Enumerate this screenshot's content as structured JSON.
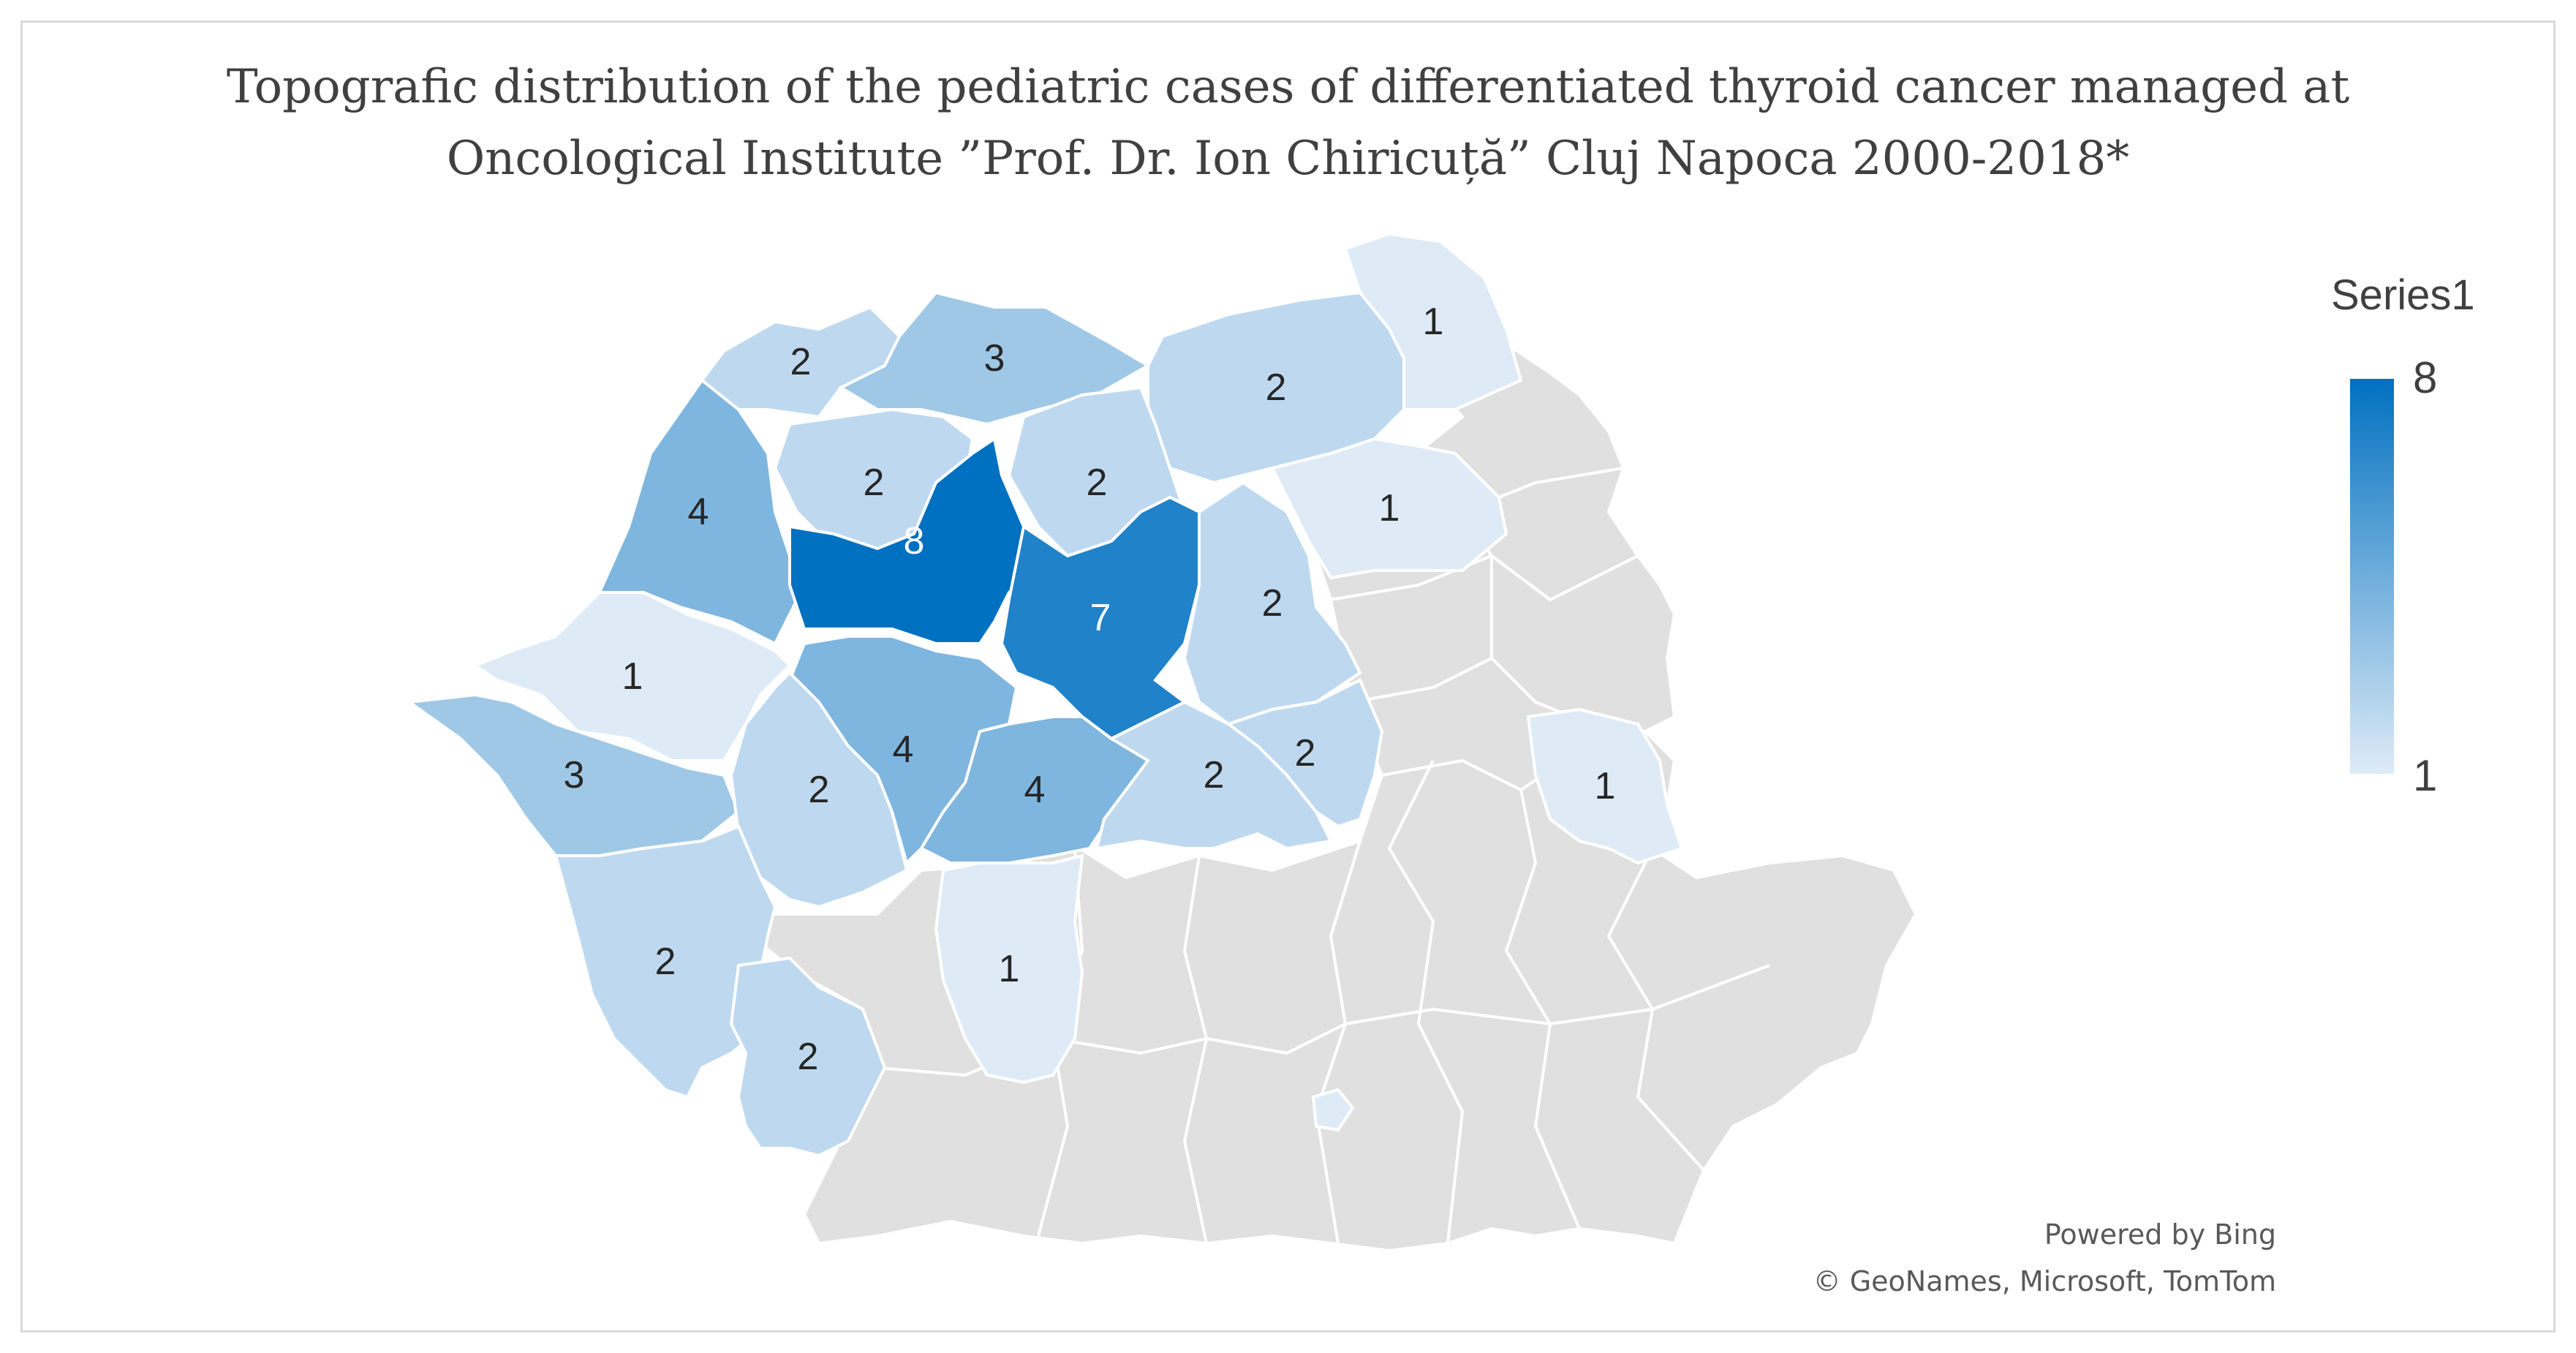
{
  "title": {
    "line1": "Topografic distribution of the pediatric cases of differentiated thyroid cancer managed at",
    "line2": "Oncological Institute ”Prof. Dr. Ion Chiricuță” Cluj Napoca 2000-2018*"
  },
  "legend": {
    "title": "Series1",
    "max": "8",
    "min": "1",
    "color_max": "#0070c0",
    "color_min": "#deebf7"
  },
  "credits": {
    "line1": "Powered by Bing",
    "line2": "© GeoNames, Microsoft, TomTom"
  },
  "colors": {
    "no_data": "#e0e0e0",
    "border": "#ffffff",
    "label_dark": "#262626",
    "label_light": "#ffffff"
  },
  "regions": [
    {
      "id": "maramures",
      "value": 3
    },
    {
      "id": "satu-mare",
      "value": 2
    },
    {
      "id": "suceava",
      "value": 2
    },
    {
      "id": "botosani",
      "value": 1
    },
    {
      "id": "bihor",
      "value": 4
    },
    {
      "id": "salaj",
      "value": 2
    },
    {
      "id": "bistrita-nasaud",
      "value": 2
    },
    {
      "id": "neamt",
      "value": 1
    },
    {
      "id": "cluj",
      "value": 8
    },
    {
      "id": "mures",
      "value": 7
    },
    {
      "id": "harghita",
      "value": 2
    },
    {
      "id": "arad",
      "value": 1
    },
    {
      "id": "alba",
      "value": 4
    },
    {
      "id": "timis",
      "value": 3
    },
    {
      "id": "hunedoara",
      "value": 2
    },
    {
      "id": "sibiu",
      "value": 4
    },
    {
      "id": "brasov",
      "value": 2
    },
    {
      "id": "covasna",
      "value": 2
    },
    {
      "id": "caras-severin",
      "value": 2
    },
    {
      "id": "valcea",
      "value": 1
    },
    {
      "id": "mehedinti",
      "value": 2
    },
    {
      "id": "vaslui",
      "value": 1
    }
  ]
}
